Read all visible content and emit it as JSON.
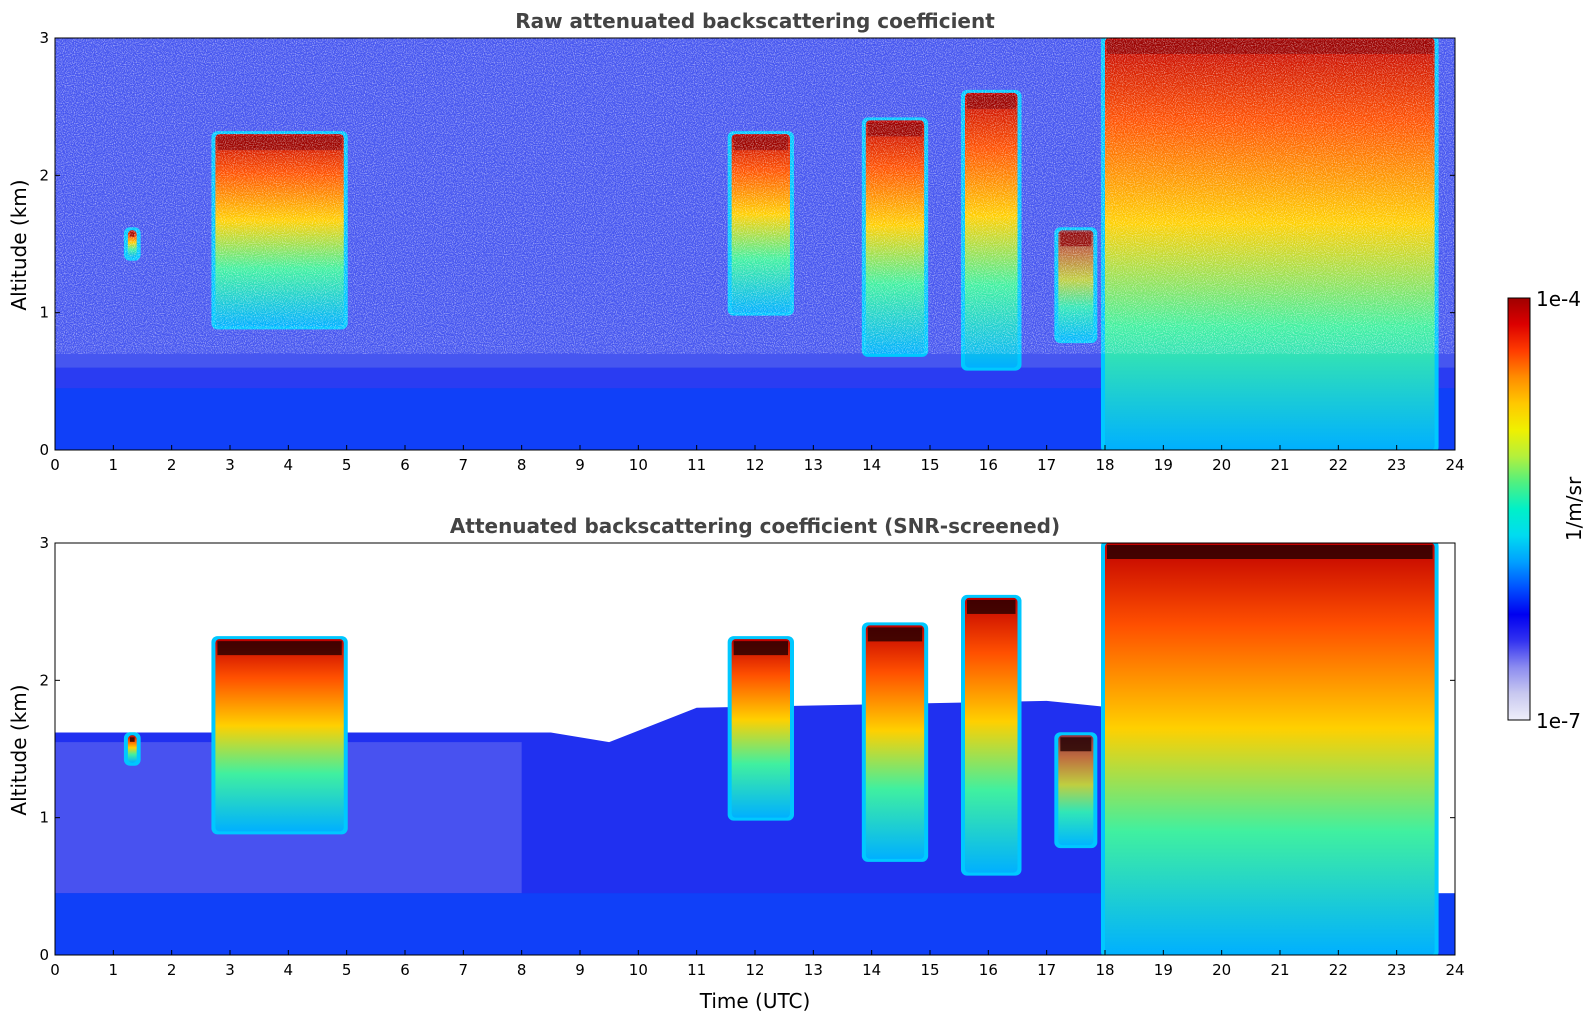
{
  "chart_data": [
    {
      "type": "heatmap",
      "title": "Raw attenuated backscattering coefficient",
      "xlabel": "",
      "ylabel": "Altitude (km)",
      "xlim": [
        0,
        24
      ],
      "ylim": [
        0,
        3
      ],
      "xticks": [
        "0",
        "1",
        "2",
        "3",
        "4",
        "5",
        "6",
        "7",
        "8",
        "9",
        "10",
        "11",
        "12",
        "13",
        "14",
        "15",
        "16",
        "17",
        "18",
        "19",
        "20",
        "21",
        "22",
        "23",
        "24"
      ],
      "yticks": [
        "0",
        "1",
        "2",
        "3"
      ],
      "screened": false,
      "features": [
        {
          "t0": 2.75,
          "t1": 4.95,
          "alt_base": 0.9,
          "alt_top": 2.3,
          "intensity": "high"
        },
        {
          "t0": 1.25,
          "t1": 1.4,
          "alt_base": 1.4,
          "alt_top": 1.6,
          "intensity": "high"
        },
        {
          "t0": 11.6,
          "t1": 12.6,
          "alt_base": 1.0,
          "alt_top": 2.3,
          "intensity": "high"
        },
        {
          "t0": 13.9,
          "t1": 14.9,
          "alt_base": 0.7,
          "alt_top": 2.4,
          "intensity": "high"
        },
        {
          "t0": 15.6,
          "t1": 16.5,
          "alt_base": 0.6,
          "alt_top": 2.6,
          "intensity": "high"
        },
        {
          "t0": 17.2,
          "t1": 17.8,
          "alt_base": 0.8,
          "alt_top": 1.6,
          "intensity": "medium"
        },
        {
          "t0": 18.0,
          "t1": 23.65,
          "alt_base": 0.0,
          "alt_top": 3.0,
          "intensity": "high"
        }
      ]
    },
    {
      "type": "heatmap",
      "title": "Attenuated backscattering coefficient (SNR-screened)",
      "xlabel": "Time (UTC)",
      "ylabel": "Altitude (km)",
      "xlim": [
        0,
        24
      ],
      "ylim": [
        0,
        3
      ],
      "xticks": [
        "0",
        "1",
        "2",
        "3",
        "4",
        "5",
        "6",
        "7",
        "8",
        "9",
        "10",
        "11",
        "12",
        "13",
        "14",
        "15",
        "16",
        "17",
        "18",
        "19",
        "20",
        "21",
        "22",
        "23",
        "24"
      ],
      "yticks": [
        "0",
        "1",
        "2",
        "3"
      ],
      "screened": true,
      "features": [
        {
          "t0": 2.75,
          "t1": 4.95,
          "alt_base": 0.9,
          "alt_top": 2.3,
          "intensity": "high"
        },
        {
          "t0": 1.25,
          "t1": 1.4,
          "alt_base": 1.4,
          "alt_top": 1.6,
          "intensity": "high"
        },
        {
          "t0": 11.6,
          "t1": 12.6,
          "alt_base": 1.0,
          "alt_top": 2.3,
          "intensity": "high"
        },
        {
          "t0": 13.9,
          "t1": 14.9,
          "alt_base": 0.7,
          "alt_top": 2.4,
          "intensity": "high"
        },
        {
          "t0": 15.6,
          "t1": 16.5,
          "alt_base": 0.6,
          "alt_top": 2.6,
          "intensity": "high"
        },
        {
          "t0": 17.2,
          "t1": 17.8,
          "alt_base": 0.8,
          "alt_top": 1.6,
          "intensity": "medium"
        },
        {
          "t0": 18.0,
          "t1": 23.65,
          "alt_base": 0.0,
          "alt_top": 3.0,
          "intensity": "high"
        }
      ]
    }
  ],
  "colorbar": {
    "label": "1/m/sr",
    "max_label": "1e-4",
    "min_label": "1e-7",
    "colors": [
      "#eeeefa",
      "#c8c8f0",
      "#8c8cf0",
      "#3232f0",
      "#0000f0",
      "#0050ff",
      "#00a0ff",
      "#00dcf0",
      "#00f0c8",
      "#50f080",
      "#b4f03c",
      "#f0f000",
      "#ffc800",
      "#ff8c00",
      "#ff3c00",
      "#dc0000",
      "#a00000"
    ]
  }
}
